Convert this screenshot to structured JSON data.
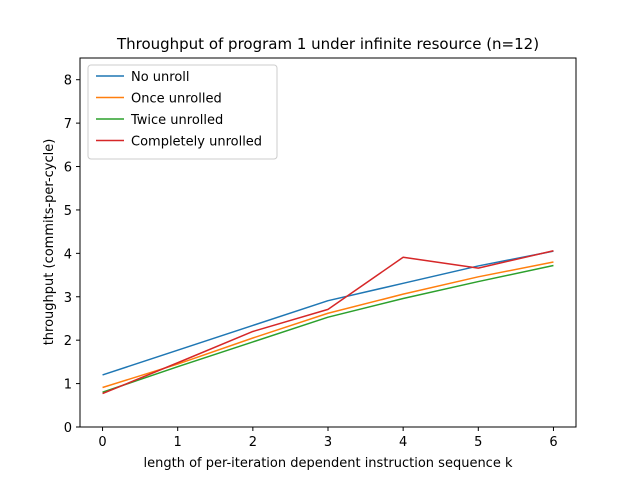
{
  "chart_data": {
    "type": "line",
    "title": "Throughput of program 1 under infinite resource (n=12)",
    "xlabel": "length of per-iteration dependent instruction sequence k",
    "ylabel": "throughput (commits-per-cycle)",
    "xlim": [
      -0.3,
      6.3
    ],
    "ylim": [
      0,
      8.5
    ],
    "xticks": [
      0,
      1,
      2,
      3,
      4,
      5,
      6
    ],
    "yticks": [
      0,
      1,
      2,
      3,
      4,
      5,
      6,
      7,
      8
    ],
    "x": [
      0,
      1,
      2,
      3,
      4,
      5,
      6
    ],
    "grid": false,
    "legend_position": "top-left",
    "series": [
      {
        "name": "No unroll",
        "color": "#1f77b4",
        "values": [
          1.2,
          1.77,
          2.34,
          2.91,
          3.31,
          3.71,
          4.05
        ]
      },
      {
        "name": "Once unrolled",
        "color": "#ff7f0e",
        "values": [
          0.91,
          1.45,
          2.05,
          2.62,
          3.06,
          3.46,
          3.8
        ]
      },
      {
        "name": "Twice unrolled",
        "color": "#2ca02c",
        "values": [
          0.8,
          1.39,
          1.96,
          2.53,
          2.96,
          3.35,
          3.72
        ]
      },
      {
        "name": "Completely unrolled",
        "color": "#d62728",
        "values": [
          0.77,
          1.48,
          2.2,
          2.71,
          3.91,
          3.66,
          4.06
        ]
      }
    ]
  }
}
